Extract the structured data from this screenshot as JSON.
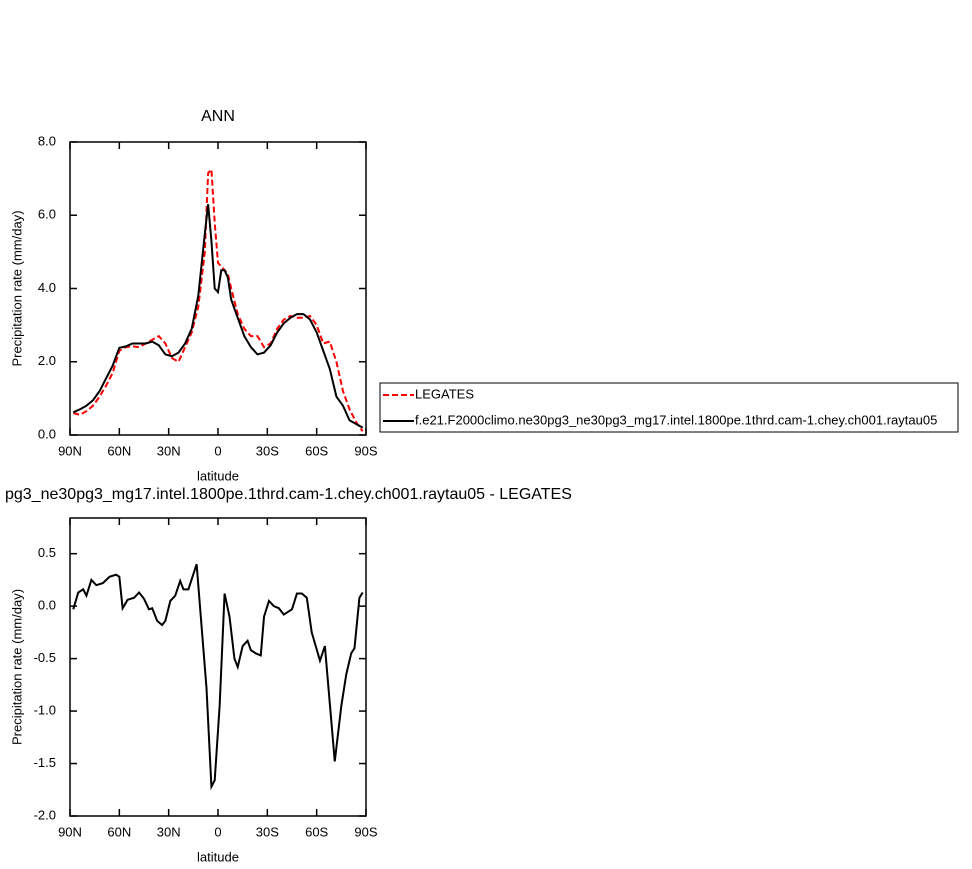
{
  "chart_data": [
    {
      "type": "line",
      "title": "ANN",
      "xlabel": "latitude",
      "ylabel": "Precipitation rate (mm/day)",
      "x": [
        88,
        84,
        80,
        76,
        72,
        68,
        64,
        60,
        56,
        52,
        48,
        44,
        40,
        36,
        32,
        28,
        24,
        20,
        16,
        12,
        8,
        6,
        4,
        2,
        0,
        -2,
        -4,
        -6,
        -8,
        -12,
        -16,
        -20,
        -24,
        -28,
        -32,
        -36,
        -40,
        -44,
        -48,
        -52,
        -56,
        -60,
        -64,
        -68,
        -72,
        -76,
        -80,
        -84,
        -88
      ],
      "series": [
        {
          "name": "LEGATES",
          "color": "#ff0000",
          "linestyle": "dashed",
          "values": [
            0.6,
            0.55,
            0.65,
            0.8,
            1.05,
            1.35,
            1.7,
            2.3,
            2.4,
            2.42,
            2.4,
            2.5,
            2.6,
            2.7,
            2.5,
            2.1,
            2.0,
            2.4,
            2.8,
            3.5,
            5.0,
            7.15,
            7.25,
            5.8,
            4.7,
            4.6,
            4.5,
            4.4,
            4.0,
            3.3,
            2.9,
            2.7,
            2.7,
            2.4,
            2.5,
            2.9,
            3.15,
            3.25,
            3.2,
            3.2,
            3.25,
            3.0,
            2.5,
            2.55,
            2.0,
            1.2,
            0.7,
            0.35,
            0.1
          ]
        },
        {
          "name": "f.e21.F2000climo.ne30pg3_ne30pg3_mg17.intel.1800pe.1thrd.cam-1.chey.ch001.raytau05",
          "color": "#000000",
          "linestyle": "solid",
          "values": [
            0.62,
            0.7,
            0.8,
            0.95,
            1.2,
            1.55,
            1.9,
            2.38,
            2.42,
            2.5,
            2.5,
            2.5,
            2.55,
            2.45,
            2.2,
            2.15,
            2.25,
            2.5,
            2.9,
            3.8,
            5.5,
            6.3,
            5.3,
            4.0,
            3.9,
            4.5,
            4.5,
            4.3,
            3.7,
            3.2,
            2.7,
            2.4,
            2.2,
            2.25,
            2.45,
            2.8,
            3.05,
            3.2,
            3.3,
            3.3,
            3.15,
            2.8,
            2.3,
            1.8,
            1.05,
            0.8,
            0.4,
            0.3,
            0.2
          ]
        }
      ],
      "xlim": [
        90,
        -90
      ],
      "xticks": [
        {
          "value": 90,
          "label": "90N"
        },
        {
          "value": 60,
          "label": "60N"
        },
        {
          "value": 30,
          "label": "30N"
        },
        0,
        {
          "value": -30,
          "label": "30S"
        },
        {
          "value": -60,
          "label": "60S"
        },
        {
          "value": -90,
          "label": "90S"
        }
      ],
      "ylim": [
        0,
        8
      ],
      "yticks": [
        {
          "value": 0,
          "label": "0.0"
        },
        {
          "value": 2,
          "label": "2.0"
        },
        {
          "value": 4,
          "label": "4.0"
        },
        {
          "value": 6,
          "label": "6.0"
        },
        {
          "value": 8,
          "label": "8.0"
        }
      ],
      "legend": "right"
    },
    {
      "type": "line",
      "title": "pg3_ne30pg3_mg17.intel.1800pe.1thrd.cam-1.chey.ch001.raytau05 - LEGATES",
      "xlabel": "latitude",
      "ylabel": "Precipitation rate (mm/day)",
      "x": [
        88,
        85,
        82,
        80,
        77,
        74,
        70,
        66,
        62,
        60,
        58,
        55,
        51,
        48,
        45,
        42,
        40,
        37,
        34,
        32,
        29,
        26,
        23,
        21,
        18,
        13,
        7,
        4,
        2,
        -1,
        -4,
        -7,
        -10,
        -12,
        -15,
        -18,
        -20,
        -23,
        -26,
        -28,
        -31,
        -34,
        -37,
        -40,
        -45,
        -48,
        -51,
        -54,
        -57,
        -62,
        -65,
        -71,
        -75,
        -78,
        -81,
        -83,
        -86,
        -88
      ],
      "series": [
        {
          "name": null,
          "color": "#000000",
          "linestyle": "solid",
          "values": [
            -0.03,
            0.13,
            0.16,
            0.1,
            0.25,
            0.2,
            0.22,
            0.28,
            0.3,
            0.28,
            -0.02,
            0.06,
            0.08,
            0.13,
            0.07,
            -0.03,
            -0.02,
            -0.14,
            -0.18,
            -0.14,
            0.05,
            0.1,
            0.24,
            0.16,
            0.16,
            0.4,
            -0.78,
            -1.72,
            -1.66,
            -0.95,
            0.12,
            -0.1,
            -0.5,
            -0.58,
            -0.38,
            -0.33,
            -0.42,
            -0.45,
            -0.47,
            -0.1,
            0.05,
            0.0,
            -0.02,
            -0.08,
            -0.03,
            0.12,
            0.12,
            0.08,
            -0.25,
            -0.52,
            -0.38,
            -1.48,
            -0.95,
            -0.65,
            -0.45,
            -0.4,
            0.08,
            0.13
          ]
        }
      ],
      "xlim": [
        90,
        -90
      ],
      "xticks": [
        {
          "value": 90,
          "label": "90N"
        },
        {
          "value": 60,
          "label": "60N"
        },
        {
          "value": 30,
          "label": "30N"
        },
        0,
        {
          "value": -30,
          "label": "30S"
        },
        {
          "value": -60,
          "label": "60S"
        },
        {
          "value": -90,
          "label": "90S"
        }
      ],
      "ylim": [
        -2.0,
        0.84
      ],
      "yticks": [
        0.5,
        {
          "value": 0,
          "label": "0.0"
        },
        -0.5,
        {
          "value": -1,
          "label": "-1.0"
        },
        -1.5,
        {
          "value": -2,
          "label": "-2.0"
        }
      ]
    }
  ]
}
